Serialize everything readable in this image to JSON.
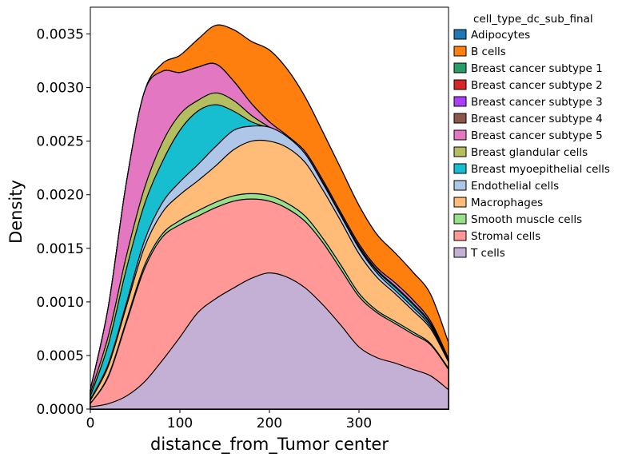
{
  "chart_data": {
    "type": "area",
    "stacked": true,
    "xlabel": "distance_from_Tumor center",
    "ylabel": "Density",
    "xlim": [
      0,
      400
    ],
    "ylim": [
      0,
      0.00375
    ],
    "x_ticks": [
      0,
      100,
      200,
      300
    ],
    "x_tick_labels": [
      "0",
      "100",
      "200",
      "300"
    ],
    "y_ticks": [
      0,
      0.0005,
      0.001,
      0.0015,
      0.002,
      0.0025,
      0.003,
      0.0035
    ],
    "y_tick_labels": [
      "0.0000",
      "0.0005",
      "0.0010",
      "0.0015",
      "0.0020",
      "0.0025",
      "0.0030",
      "0.0035"
    ],
    "grid": false,
    "legend": {
      "title": "cell_type_dc_sub_final",
      "placement": "outside-right",
      "entries": [
        {
          "name": "Adipocytes",
          "color": "#1f77b4"
        },
        {
          "name": "B cells",
          "color": "#ff7f0e"
        },
        {
          "name": "Breast cancer subtype 1",
          "color": "#279e68"
        },
        {
          "name": "Breast cancer subtype 2",
          "color": "#d62728"
        },
        {
          "name": "Breast cancer subtype 3",
          "color": "#aa40fc"
        },
        {
          "name": "Breast cancer subtype 4",
          "color": "#8c564b"
        },
        {
          "name": "Breast cancer subtype 5",
          "color": "#e377c2"
        },
        {
          "name": "Breast glandular cells",
          "color": "#b5bd61"
        },
        {
          "name": "Breast myoepithelial cells",
          "color": "#17becf"
        },
        {
          "name": "Endothelial cells",
          "color": "#aec7e8"
        },
        {
          "name": "Macrophages",
          "color": "#ffbb78"
        },
        {
          "name": "Smooth muscle cells",
          "color": "#98df8a"
        },
        {
          "name": "Stromal cells",
          "color": "#ff9896"
        },
        {
          "name": "T cells",
          "color": "#c5b0d5"
        }
      ]
    },
    "x": [
      0,
      20,
      40,
      60,
      80,
      100,
      120,
      140,
      160,
      180,
      200,
      220,
      240,
      260,
      280,
      300,
      320,
      340,
      360,
      380,
      400
    ],
    "stack_order_bottom_to_top": [
      "T cells",
      "Stromal cells",
      "Smooth muscle cells",
      "Macrophages",
      "Endothelial cells",
      "Breast myoepithelial cells",
      "Breast glandular cells",
      "Breast cancer subtype 5",
      "Breast cancer subtype 4",
      "Breast cancer subtype 3",
      "Breast cancer subtype 2",
      "Breast cancer subtype 1",
      "B cells",
      "Adipocytes"
    ],
    "cumulative_tops": {
      "T cells": [
        2e-05,
        5e-05,
        0.00012,
        0.00025,
        0.00045,
        0.00067,
        0.0009,
        0.00103,
        0.00113,
        0.00122,
        0.00127,
        0.00123,
        0.00113,
        0.00097,
        0.00078,
        0.00058,
        0.00048,
        0.00043,
        0.00037,
        0.00031,
        0.00018
      ],
      "Stromal cells": [
        5e-05,
        0.0003,
        0.0008,
        0.0013,
        0.0016,
        0.00172,
        0.0018,
        0.00188,
        0.00194,
        0.00196,
        0.00194,
        0.00187,
        0.00175,
        0.00155,
        0.0013,
        0.00105,
        0.0009,
        0.0008,
        0.0007,
        0.0006,
        0.00037
      ],
      "Smooth muscle cells": [
        5e-05,
        0.00031,
        0.00082,
        0.00133,
        0.00163,
        0.00176,
        0.00185,
        0.00193,
        0.00199,
        0.00201,
        0.00199,
        0.00192,
        0.0018,
        0.00159,
        0.00134,
        0.00108,
        0.00092,
        0.00082,
        0.00072,
        0.00061,
        0.00038
      ],
      "Macrophages": [
        8e-05,
        0.0004,
        0.00095,
        0.0015,
        0.00183,
        0.002,
        0.00213,
        0.00227,
        0.00242,
        0.0025,
        0.0025,
        0.00244,
        0.0023,
        0.00204,
        0.00175,
        0.00145,
        0.00123,
        0.00108,
        0.00092,
        0.00075,
        0.00044
      ],
      "Endothelial cells": [
        9e-05,
        0.00042,
        0.00098,
        0.00156,
        0.00192,
        0.00212,
        0.00228,
        0.00245,
        0.0026,
        0.00264,
        0.00263,
        0.00254,
        0.00238,
        0.0021,
        0.0018,
        0.0015,
        0.00127,
        0.00111,
        0.00095,
        0.00077,
        0.00045
      ],
      "Breast myoepithelial cells": [
        0.00012,
        0.0006,
        0.0013,
        0.0019,
        0.0023,
        0.0026,
        0.00278,
        0.00284,
        0.00278,
        0.00268,
        0.00262,
        0.00252,
        0.00237,
        0.0021,
        0.0018,
        0.00151,
        0.00129,
        0.00114,
        0.00098,
        0.00079,
        0.00045
      ],
      "Breast glandular cells": [
        0.00015,
        0.00068,
        0.00142,
        0.00205,
        0.00248,
        0.00275,
        0.00288,
        0.00295,
        0.00288,
        0.00274,
        0.00263,
        0.00253,
        0.00238,
        0.00211,
        0.00181,
        0.00152,
        0.0013,
        0.00115,
        0.00099,
        0.0008,
        0.00046
      ],
      "Breast cancer subtype 5": [
        0.00018,
        0.00095,
        0.0021,
        0.00295,
        0.00315,
        0.00314,
        0.00319,
        0.00322,
        0.00306,
        0.00285,
        0.00268,
        0.00255,
        0.0024,
        0.00213,
        0.00183,
        0.00154,
        0.00132,
        0.00118,
        0.00102,
        0.00082,
        0.00047
      ],
      "Breast cancer subtype 4": [
        0.00018,
        0.00095,
        0.0021,
        0.00295,
        0.00315,
        0.00314,
        0.00319,
        0.00322,
        0.00306,
        0.00285,
        0.00268,
        0.00255,
        0.0024,
        0.00213,
        0.00183,
        0.00154,
        0.00132,
        0.00118,
        0.00102,
        0.00082,
        0.00047
      ],
      "Breast cancer subtype 3": [
        0.00018,
        0.00095,
        0.0021,
        0.00295,
        0.00315,
        0.00314,
        0.00319,
        0.00322,
        0.00306,
        0.00285,
        0.00268,
        0.00255,
        0.0024,
        0.00213,
        0.00183,
        0.00154,
        0.00132,
        0.00118,
        0.00102,
        0.00082,
        0.00047
      ],
      "Breast cancer subtype 2": [
        0.00018,
        0.00095,
        0.0021,
        0.00295,
        0.00315,
        0.00314,
        0.00319,
        0.00322,
        0.00306,
        0.00285,
        0.00268,
        0.00255,
        0.0024,
        0.00213,
        0.00183,
        0.00154,
        0.00132,
        0.00118,
        0.00102,
        0.00082,
        0.00047
      ],
      "Breast cancer subtype 1": [
        0.00018,
        0.00095,
        0.0021,
        0.00295,
        0.00315,
        0.00314,
        0.00319,
        0.00322,
        0.00306,
        0.00285,
        0.00268,
        0.00255,
        0.0024,
        0.00213,
        0.00183,
        0.00154,
        0.00132,
        0.00118,
        0.00102,
        0.00082,
        0.00047
      ],
      "B cells": [
        0.00018,
        0.00095,
        0.0021,
        0.00295,
        0.00322,
        0.0033,
        0.00345,
        0.00358,
        0.00354,
        0.00343,
        0.00335,
        0.00317,
        0.00291,
        0.00258,
        0.00224,
        0.0019,
        0.00163,
        0.00146,
        0.00128,
        0.00107,
        0.00062
      ],
      "Adipocytes": [
        0.00018,
        0.00095,
        0.0021,
        0.00295,
        0.00322,
        0.0033,
        0.00345,
        0.00358,
        0.00354,
        0.00343,
        0.00335,
        0.00317,
        0.00291,
        0.00258,
        0.00224,
        0.0019,
        0.00163,
        0.00146,
        0.00128,
        0.00107,
        0.00062
      ]
    }
  }
}
